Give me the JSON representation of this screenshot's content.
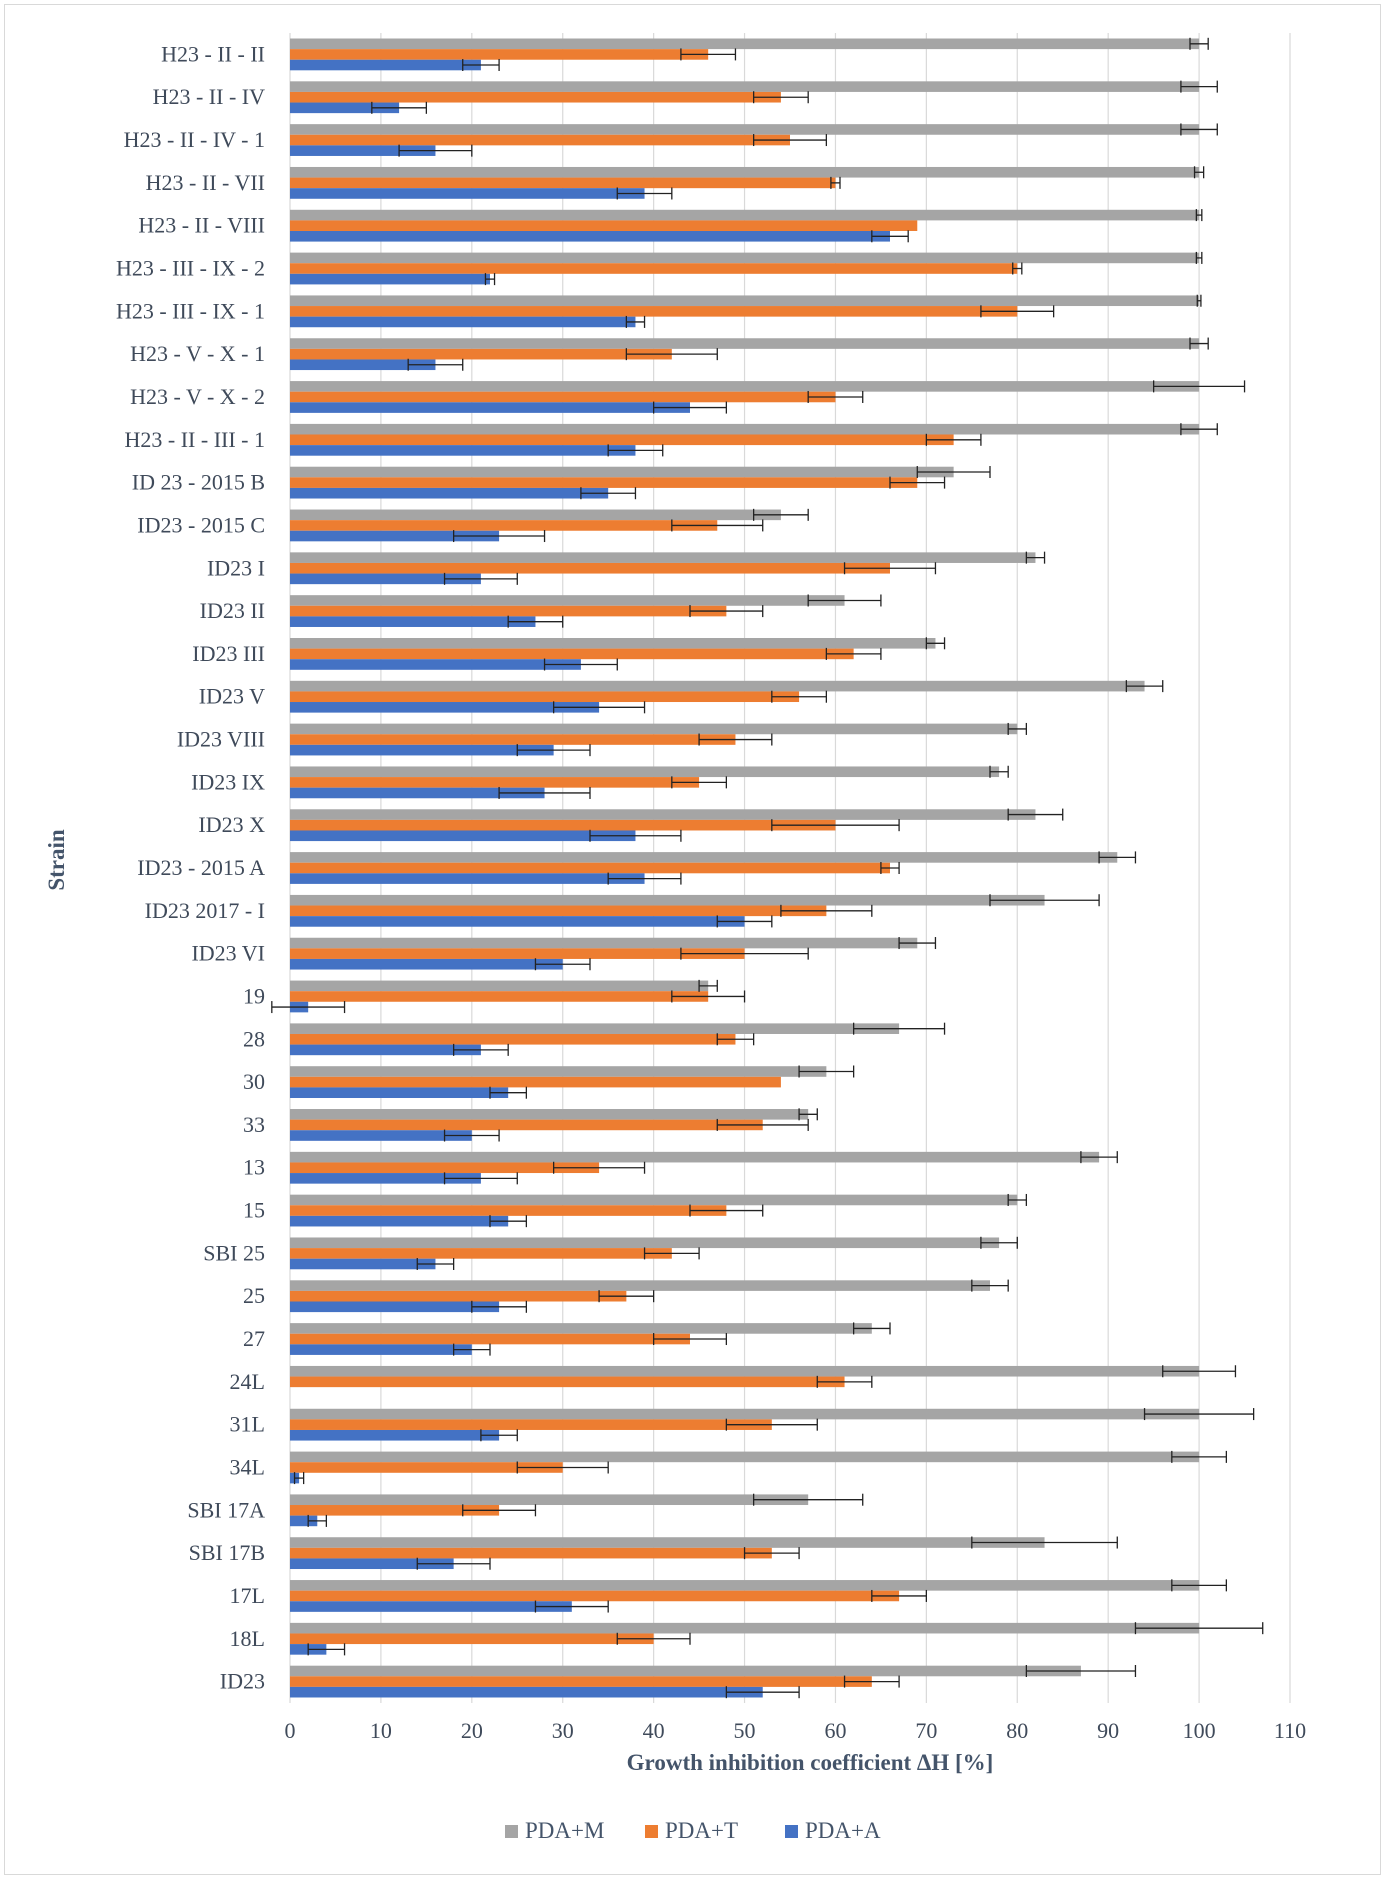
{
  "chart_data": {
    "type": "bar",
    "orientation": "horizontal",
    "xlabel": "Growth inhibition coefficient ΔH [%]",
    "ylabel": "Strain",
    "xlim": [
      0,
      110
    ],
    "xticks": [
      0,
      10,
      20,
      30,
      40,
      50,
      60,
      70,
      80,
      90,
      100,
      110
    ],
    "grid": "vertical",
    "legend_position": "bottom",
    "categories": [
      "H23 - II - II",
      "H23 - II - IV",
      "H23 - II - IV - 1",
      "H23 - II - VII",
      "H23 - II - VIII",
      "H23 - III - IX - 2",
      "H23 - III - IX - 1",
      "H23 - V - X - 1",
      "H23 - V - X - 2",
      "H23 - II - III - 1",
      "ID 23 - 2015 B",
      "ID23 - 2015 C",
      "ID23 I",
      "ID23 II",
      "ID23 III",
      "ID23 V",
      "ID23 VIII",
      "ID23 IX",
      "ID23 X",
      "ID23 - 2015 A",
      "ID23 2017 - I",
      "ID23 VI",
      "19",
      "28",
      "30",
      "33",
      "13",
      "15",
      "SBI 25",
      "25",
      "27",
      "24L",
      "31L",
      "34L",
      "SBI 17A",
      "SBI 17B",
      "17L",
      "18L",
      "ID23"
    ],
    "series": [
      {
        "name": "PDA+M",
        "color": "#a5a5a5",
        "values": [
          100,
          100,
          100,
          100,
          100,
          100,
          100,
          100,
          100,
          100,
          73,
          54,
          82,
          61,
          71,
          94,
          80,
          78,
          82,
          91,
          83,
          69,
          46,
          67,
          59,
          57,
          89,
          80,
          78,
          77,
          64,
          100,
          100,
          100,
          57,
          83,
          100,
          100,
          87
        ],
        "errors": [
          1,
          2,
          2,
          0.5,
          0.3,
          0.3,
          0.2,
          1,
          5,
          2,
          4,
          3,
          1,
          4,
          1,
          2,
          1,
          1,
          3,
          2,
          6,
          2,
          1,
          5,
          3,
          1,
          2,
          1,
          2,
          2,
          2,
          4,
          6,
          3,
          6,
          8,
          3,
          7,
          6
        ]
      },
      {
        "name": "PDA+T",
        "color": "#ed7d31",
        "values": [
          46,
          54,
          55,
          60,
          69,
          80,
          80,
          42,
          60,
          73,
          69,
          47,
          66,
          48,
          62,
          56,
          49,
          45,
          60,
          66,
          59,
          50,
          46,
          49,
          54,
          52,
          34,
          48,
          42,
          37,
          44,
          61,
          53,
          30,
          23,
          53,
          67,
          40,
          64
        ],
        "errors": [
          3,
          3,
          4,
          0.5,
          0,
          0.5,
          4,
          5,
          3,
          3,
          3,
          5,
          5,
          4,
          3,
          3,
          4,
          3,
          7,
          1,
          5,
          7,
          4,
          2,
          0,
          5,
          5,
          4,
          3,
          3,
          4,
          3,
          5,
          5,
          4,
          3,
          3,
          4,
          3
        ]
      },
      {
        "name": "PDA+A",
        "color": "#4472c4",
        "values": [
          21,
          12,
          16,
          39,
          66,
          22,
          38,
          16,
          44,
          38,
          35,
          23,
          21,
          27,
          32,
          34,
          29,
          28,
          38,
          39,
          50,
          30,
          2,
          21,
          24,
          20,
          21,
          24,
          16,
          23,
          20,
          0,
          23,
          1,
          3,
          18,
          31,
          4,
          52
        ],
        "errors": [
          2,
          3,
          4,
          3,
          2,
          0.5,
          1,
          3,
          4,
          3,
          3,
          5,
          4,
          3,
          4,
          5,
          4,
          5,
          5,
          4,
          3,
          3,
          4,
          3,
          2,
          3,
          4,
          2,
          2,
          3,
          2,
          0,
          2,
          0.5,
          1,
          4,
          4,
          2,
          4
        ]
      }
    ]
  }
}
